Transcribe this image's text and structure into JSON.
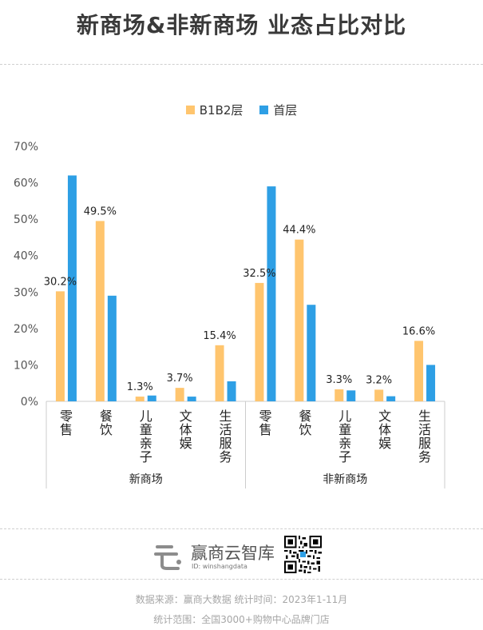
{
  "title": "新商场&非新商场 业态占比对比",
  "colors": {
    "b1b2": "#FFC56E",
    "first": "#2E9FE5"
  },
  "chart_data": {
    "type": "bar",
    "groups": [
      {
        "name": "新商场",
        "categories": [
          "零售",
          "餐饮",
          "儿童亲子",
          "文体娱",
          "生活服务"
        ]
      },
      {
        "name": "非新商场",
        "categories": [
          "零售",
          "餐饮",
          "儿童亲子",
          "文体娱",
          "生活服务"
        ]
      }
    ],
    "category_labels": [
      [
        "零",
        "售"
      ],
      [
        "餐",
        "饮"
      ],
      [
        "儿",
        "童",
        "亲",
        "子"
      ],
      [
        "文",
        "体",
        "娱"
      ],
      [
        "生",
        "活",
        "服",
        "务"
      ],
      [
        "零",
        "售"
      ],
      [
        "餐",
        "饮"
      ],
      [
        "儿",
        "童",
        "亲",
        "子"
      ],
      [
        "文",
        "体",
        "娱"
      ],
      [
        "生",
        "活",
        "服",
        "务"
      ]
    ],
    "series": [
      {
        "name": "B1B2层",
        "values": [
          30.2,
          49.5,
          1.3,
          3.7,
          15.4,
          32.5,
          44.4,
          3.3,
          3.2,
          16.6
        ],
        "labels": [
          "30.2%",
          "49.5%",
          "1.3%",
          "3.7%",
          "15.4%",
          "32.5%",
          "44.4%",
          "3.3%",
          "3.2%",
          "16.6%"
        ]
      },
      {
        "name": "首层",
        "values": [
          62.0,
          29.0,
          1.6,
          1.3,
          5.5,
          59.0,
          26.5,
          3.0,
          1.4,
          10.0
        ]
      }
    ],
    "ylim": [
      0,
      70
    ],
    "yticks": [
      "0%",
      "10%",
      "20%",
      "30%",
      "40%",
      "50%",
      "60%",
      "70%"
    ],
    "legend": "top-center",
    "grid": false
  },
  "footer": {
    "brand_name": "赢商云智库",
    "brand_id": "ID: winshangdata",
    "source": "数据来源：赢商大数据   统计时间：2023年1-11月",
    "scope": "统计范围：全国3000+购物中心品牌门店"
  }
}
